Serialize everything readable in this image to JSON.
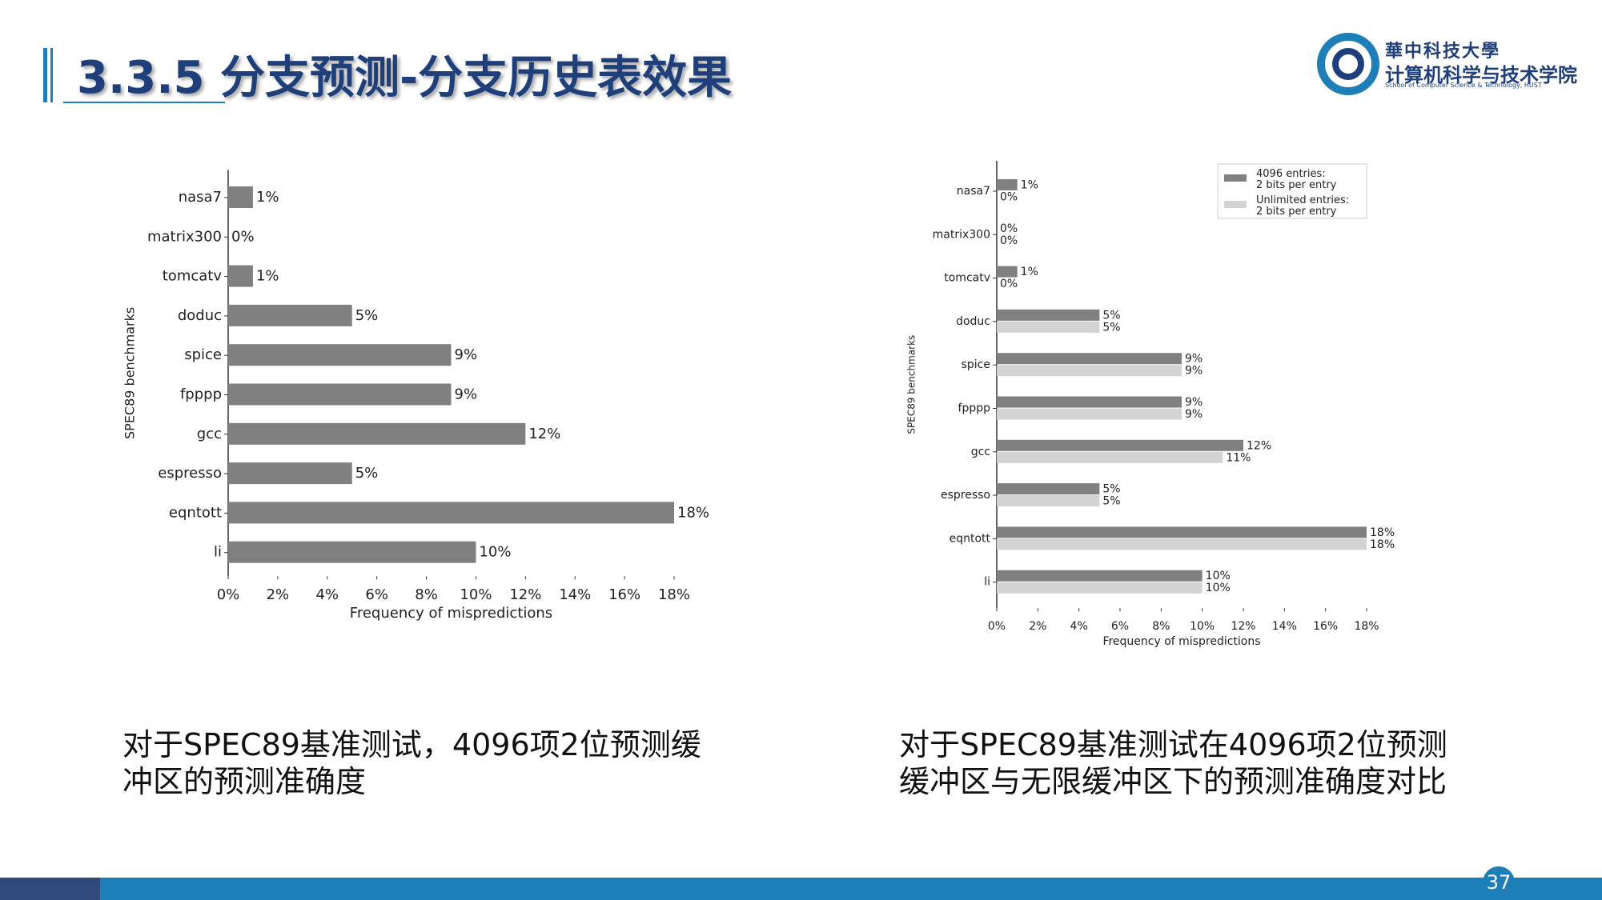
{
  "header": {
    "title": "3.3.5 分支预测-分支历史表效果"
  },
  "logo": {
    "name_traditional": "華中科技大學",
    "school": "计算机科学与技术学院",
    "school_en": "School of Computer Science & Technology, HUST"
  },
  "chart_data": [
    {
      "type": "bar",
      "orientation": "horizontal",
      "categories": [
        "nasa7",
        "matrix300",
        "tomcatv",
        "doduc",
        "spice",
        "fpppp",
        "gcc",
        "espresso",
        "eqntott",
        "li"
      ],
      "values": [
        1,
        0,
        1,
        5,
        9,
        9,
        12,
        5,
        18,
        10
      ],
      "value_labels": [
        "1%",
        "0%",
        "1%",
        "5%",
        "9%",
        "9%",
        "12%",
        "5%",
        "18%",
        "10%"
      ],
      "color": "#808080",
      "xlabel": "Frequency of mispredictions",
      "ylabel": "SPEC89 benchmarks",
      "xlim": [
        0,
        18
      ],
      "xticks": [
        {
          "value": 0,
          "label": "0%"
        },
        {
          "value": 2,
          "label": "2%"
        },
        {
          "value": 4,
          "label": "4%"
        },
        {
          "value": 6,
          "label": "6%"
        },
        {
          "value": 8,
          "label": "8%"
        },
        {
          "value": 10,
          "label": "10%"
        },
        {
          "value": 12,
          "label": "12%"
        },
        {
          "value": 14,
          "label": "14%"
        },
        {
          "value": 16,
          "label": "16%"
        },
        {
          "value": 18,
          "label": "18%"
        }
      ]
    },
    {
      "type": "bar",
      "orientation": "horizontal",
      "categories": [
        "nasa7",
        "matrix300",
        "tomcatv",
        "doduc",
        "spice",
        "fpppp",
        "gcc",
        "espresso",
        "eqntott",
        "li"
      ],
      "series": [
        {
          "name": "4096 entries:\n2 bits per entry",
          "color": "#808080",
          "values": [
            1,
            0,
            1,
            5,
            9,
            9,
            12,
            5,
            18,
            10
          ],
          "value_labels": [
            "1%",
            "0%",
            "1%",
            "5%",
            "9%",
            "9%",
            "12%",
            "5%",
            "18%",
            "10%"
          ]
        },
        {
          "name": "Unlimited entries:\n2 bits per entry",
          "color": "#d3d3d3",
          "values": [
            0,
            0,
            0,
            5,
            9,
            9,
            11,
            5,
            18,
            10
          ],
          "value_labels": [
            "0%",
            "0%",
            "0%",
            "5%",
            "9%",
            "9%",
            "11%",
            "5%",
            "18%",
            "10%"
          ]
        }
      ],
      "legend": "upper right",
      "xlabel": "Frequency of mispredictions",
      "ylabel": "SPEC89 benchmarks",
      "xlim": [
        0,
        18
      ],
      "xticks": [
        {
          "value": 0,
          "label": "0%"
        },
        {
          "value": 2,
          "label": "2%"
        },
        {
          "value": 4,
          "label": "4%"
        },
        {
          "value": 6,
          "label": "6%"
        },
        {
          "value": 8,
          "label": "8%"
        },
        {
          "value": 10,
          "label": "10%"
        },
        {
          "value": 12,
          "label": "12%"
        },
        {
          "value": 14,
          "label": "14%"
        },
        {
          "value": 16,
          "label": "16%"
        },
        {
          "value": 18,
          "label": "18%"
        }
      ]
    }
  ],
  "captions": [
    "对于SPEC89基准测试，4096项2位预测缓冲区的预测准确度",
    "对于SPEC89基准测试在4096项2位预测缓冲区与无限缓冲区下的预测准确度对比"
  ],
  "page_number": "37"
}
